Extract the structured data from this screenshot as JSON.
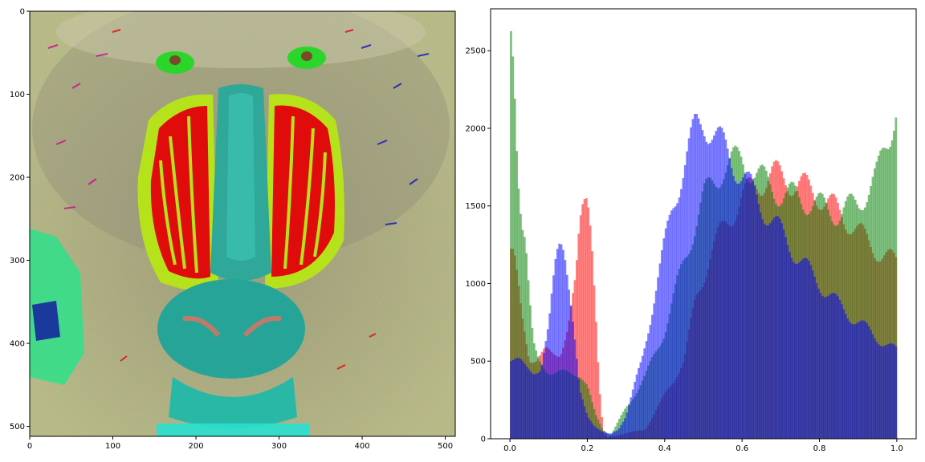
{
  "figure": {
    "background": "#ffffff"
  },
  "chart_data": [
    {
      "type": "heatmap",
      "content": "false-colour mandrill (baboon) face image",
      "xlim": [
        0,
        512
      ],
      "ylim": [
        512,
        0
      ],
      "x_ticks": [
        0,
        100,
        200,
        300,
        400,
        500
      ],
      "y_ticks": [
        0,
        100,
        200,
        300,
        400,
        500
      ],
      "grid": false
    },
    {
      "type": "bar",
      "subtype": "histogram",
      "bin_width": 0.005,
      "xlim": [
        -0.05,
        1.05
      ],
      "ylim": [
        0,
        2770
      ],
      "x_ticks": [
        0.0,
        0.2,
        0.4,
        0.6,
        0.8,
        1.0
      ],
      "y_ticks": [
        0,
        500,
        1000,
        1500,
        2000,
        2500
      ],
      "alpha": 0.5,
      "grid": false,
      "series": [
        {
          "color": "#ff0000",
          "x": [
            0.0,
            0.01,
            0.03,
            0.05,
            0.07,
            0.09,
            0.11,
            0.13,
            0.15,
            0.17,
            0.18,
            0.19,
            0.2,
            0.21,
            0.22,
            0.23,
            0.24,
            0.25,
            0.35,
            0.45,
            0.48,
            0.52,
            0.56,
            0.6,
            0.64,
            0.68,
            0.72,
            0.76,
            0.8,
            0.84,
            0.88,
            0.92,
            0.96,
            1.0
          ],
          "values": [
            1240,
            1180,
            780,
            520,
            520,
            560,
            540,
            560,
            720,
            1000,
            1350,
            1560,
            1640,
            1400,
            900,
            350,
            60,
            10,
            60,
            500,
            900,
            1200,
            1400,
            1550,
            1650,
            1700,
            1670,
            1620,
            1570,
            1480,
            1390,
            1280,
            1190,
            1130
          ]
        },
        {
          "color": "#008000",
          "x": [
            0.0,
            0.005,
            0.01,
            0.015,
            0.02,
            0.03,
            0.04,
            0.05,
            0.06,
            0.07,
            0.08,
            0.09,
            0.1,
            0.12,
            0.14,
            0.16,
            0.18,
            0.2,
            0.22,
            0.24,
            0.26,
            0.3,
            0.35,
            0.4,
            0.45,
            0.5,
            0.55,
            0.6,
            0.62,
            0.66,
            0.7,
            0.75,
            0.8,
            0.85,
            0.9,
            0.95,
            0.98,
            1.0
          ],
          "values": [
            2620,
            2540,
            2420,
            2100,
            1800,
            1450,
            1300,
            900,
            600,
            520,
            480,
            460,
            440,
            420,
            420,
            430,
            420,
            330,
            160,
            60,
            20,
            200,
            400,
            700,
            1150,
            1550,
            1750,
            1800,
            1750,
            1650,
            1580,
            1550,
            1500,
            1450,
            1520,
            1700,
            1950,
            2200
          ]
        },
        {
          "color": "#0000ff",
          "x": [
            0.0,
            0.02,
            0.04,
            0.06,
            0.08,
            0.1,
            0.11,
            0.12,
            0.13,
            0.14,
            0.15,
            0.16,
            0.17,
            0.18,
            0.2,
            0.22,
            0.24,
            0.26,
            0.28,
            0.3,
            0.34,
            0.38,
            0.42,
            0.46,
            0.48,
            0.5,
            0.52,
            0.55,
            0.6,
            0.65,
            0.7,
            0.75,
            0.8,
            0.85,
            0.9,
            0.95,
            1.0
          ],
          "values": [
            520,
            500,
            460,
            440,
            450,
            700,
            950,
            1200,
            1330,
            1280,
            1050,
            800,
            550,
            300,
            150,
            80,
            40,
            30,
            60,
            150,
            500,
            1000,
            1500,
            1850,
            2000,
            2050,
            2000,
            1880,
            1700,
            1500,
            1330,
            1150,
            1000,
            860,
            750,
            650,
            560
          ]
        }
      ]
    }
  ]
}
